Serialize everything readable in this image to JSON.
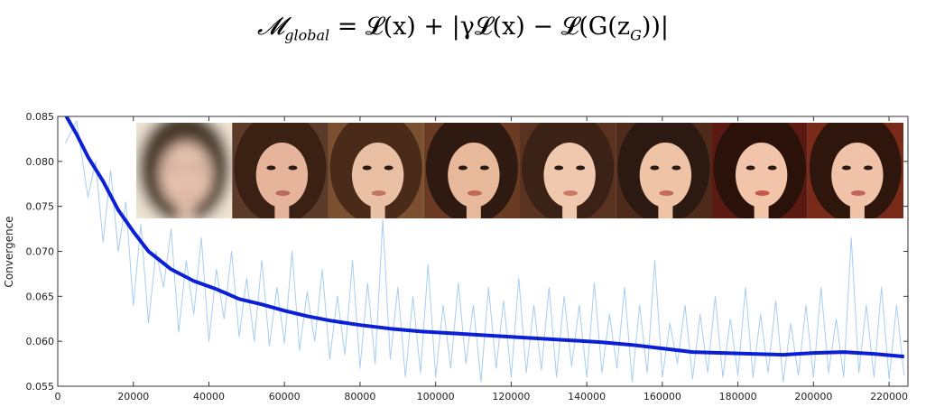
{
  "formula": {
    "lhs_symbol": "𝓜",
    "lhs_subscript": "global",
    "body_a": " = 𝓛(x) + |γ𝓛(x) − 𝓛(G(z",
    "body_sub": "G",
    "body_b": "))|"
  },
  "chart_data": {
    "type": "line",
    "title": "",
    "xlabel": "",
    "ylabel": "Convergence",
    "xlim": [
      0,
      225000
    ],
    "ylim": [
      0.055,
      0.085
    ],
    "xticks": [
      0,
      20000,
      40000,
      60000,
      80000,
      100000,
      120000,
      140000,
      160000,
      180000,
      200000,
      220000
    ],
    "xtick_labels": [
      "0",
      "20000",
      "40000",
      "60000",
      "80000",
      "100000",
      "120000",
      "140000",
      "160000",
      "180000",
      "200000",
      "220000"
    ],
    "yticks": [
      0.055,
      0.06,
      0.065,
      0.07,
      0.075,
      0.08,
      0.085
    ],
    "ytick_labels": [
      "0.055",
      "0.060",
      "0.065",
      "0.070",
      "0.075",
      "0.080",
      "0.085"
    ],
    "grid": false,
    "legend": "none",
    "series": [
      {
        "kind": "smoothed",
        "color": "#0b1fd6",
        "x": [
          2000,
          5000,
          8000,
          12000,
          16000,
          20000,
          24000,
          30000,
          36000,
          42000,
          48000,
          54000,
          60000,
          66000,
          72000,
          80000,
          88000,
          96000,
          104000,
          112000,
          120000,
          128000,
          136000,
          144000,
          152000,
          160000,
          168000,
          176000,
          184000,
          192000,
          200000,
          208000,
          216000,
          224000
        ],
        "y": [
          0.0852,
          0.083,
          0.0805,
          0.0778,
          0.0746,
          0.0722,
          0.07,
          0.068,
          0.0667,
          0.0658,
          0.0647,
          0.0641,
          0.0634,
          0.0628,
          0.0623,
          0.0618,
          0.0614,
          0.0611,
          0.0609,
          0.0607,
          0.0605,
          0.0603,
          0.0601,
          0.0599,
          0.0596,
          0.0592,
          0.0588,
          0.0587,
          0.0586,
          0.0585,
          0.0587,
          0.0588,
          0.0586,
          0.0583
        ]
      },
      {
        "kind": "raw",
        "color": "#a8cdf2",
        "x": [
          2000,
          5000,
          8000,
          10000,
          12000,
          14000,
          16000,
          18000,
          20000,
          22000,
          24000,
          26000,
          28000,
          30000,
          32000,
          34000,
          36000,
          38000,
          40000,
          42000,
          44000,
          46000,
          48000,
          50000,
          52000,
          54000,
          56000,
          58000,
          60000,
          62000,
          64000,
          66000,
          68000,
          70000,
          72000,
          74000,
          76000,
          78000,
          80000,
          82000,
          84000,
          86000,
          88000,
          90000,
          92000,
          94000,
          96000,
          98000,
          100000,
          102000,
          104000,
          106000,
          108000,
          110000,
          112000,
          114000,
          116000,
          118000,
          120000,
          122000,
          124000,
          126000,
          128000,
          130000,
          132000,
          134000,
          136000,
          138000,
          140000,
          142000,
          144000,
          146000,
          148000,
          150000,
          152000,
          154000,
          156000,
          158000,
          160000,
          162000,
          164000,
          166000,
          168000,
          170000,
          172000,
          174000,
          176000,
          178000,
          180000,
          182000,
          184000,
          186000,
          188000,
          190000,
          192000,
          194000,
          196000,
          198000,
          200000,
          202000,
          204000,
          206000,
          208000,
          210000,
          212000,
          214000,
          216000,
          218000,
          220000,
          222000,
          224000
        ],
        "y": [
          0.082,
          0.0845,
          0.076,
          0.08,
          0.071,
          0.079,
          0.07,
          0.0755,
          0.064,
          0.073,
          0.062,
          0.07,
          0.066,
          0.0725,
          0.061,
          0.069,
          0.063,
          0.0715,
          0.06,
          0.068,
          0.0625,
          0.07,
          0.0605,
          0.067,
          0.06,
          0.069,
          0.0595,
          0.066,
          0.0598,
          0.07,
          0.059,
          0.0655,
          0.06,
          0.068,
          0.058,
          0.065,
          0.0585,
          0.069,
          0.057,
          0.0665,
          0.0575,
          0.0735,
          0.058,
          0.066,
          0.056,
          0.065,
          0.0565,
          0.0685,
          0.056,
          0.064,
          0.057,
          0.0665,
          0.0575,
          0.064,
          0.0555,
          0.066,
          0.057,
          0.0645,
          0.056,
          0.067,
          0.0565,
          0.064,
          0.0568,
          0.066,
          0.056,
          0.065,
          0.0572,
          0.064,
          0.056,
          0.0665,
          0.0565,
          0.063,
          0.057,
          0.066,
          0.0555,
          0.064,
          0.0565,
          0.069,
          0.056,
          0.062,
          0.0575,
          0.064,
          0.0558,
          0.063,
          0.0565,
          0.065,
          0.056,
          0.0625,
          0.0562,
          0.066,
          0.056,
          0.063,
          0.0565,
          0.0645,
          0.0555,
          0.062,
          0.0562,
          0.064,
          0.056,
          0.066,
          0.0565,
          0.0625,
          0.056,
          0.0715,
          0.0565,
          0.064,
          0.056,
          0.066,
          0.0558,
          0.064,
          0.0562
        ]
      }
    ],
    "inset_images": {
      "count": 8,
      "description_hidden": true,
      "frames": [
        {
          "blur": 7,
          "skin": "#e6c2ae",
          "hair": "#4a3a2c",
          "bg": "#efe2d2",
          "lip": "#c9957f"
        },
        {
          "blur": 0,
          "skin": "#e5b49a",
          "hair": "#3b2014",
          "bg": "#5b3a2a",
          "lip": "#b86a5e"
        },
        {
          "blur": 0,
          "skin": "#e9c0a4",
          "hair": "#4a2a18",
          "bg": "#7a5030",
          "lip": "#c27561"
        },
        {
          "blur": 0,
          "skin": "#e8b89b",
          "hair": "#2e1a10",
          "bg": "#6a3a22",
          "lip": "#c06a5a"
        },
        {
          "blur": 0,
          "skin": "#f0c8ad",
          "hair": "#3a2216",
          "bg": "#5a3220",
          "lip": "#c97a66"
        },
        {
          "blur": 0,
          "skin": "#eec3a6",
          "hair": "#2c1a12",
          "bg": "#4e2a1a",
          "lip": "#c26a5b"
        },
        {
          "blur": 0,
          "skin": "#f2c4aa",
          "hair": "#2a120b",
          "bg": "#5a1a12",
          "lip": "#c2584c"
        },
        {
          "blur": 0,
          "skin": "#f0c2a8",
          "hair": "#2e160c",
          "bg": "#7a2a18",
          "lip": "#c26458"
        }
      ]
    }
  }
}
